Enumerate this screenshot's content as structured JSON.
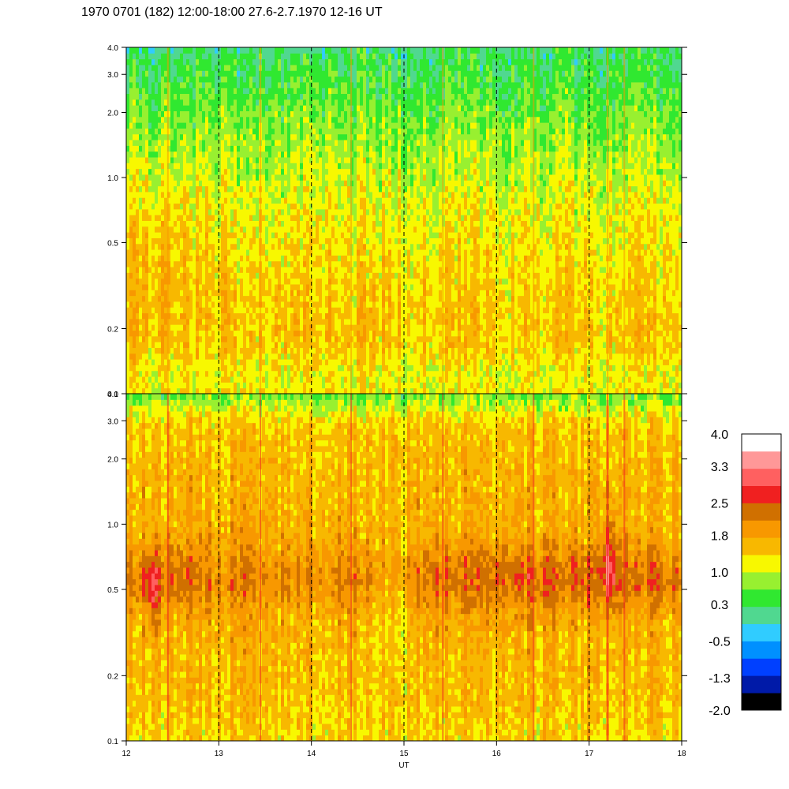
{
  "chart_data": {
    "type": "heatmap",
    "title": "1970 0701 (182) 12:00-18:00 27.6-2.7.1970  12-16 UT",
    "xlabel": "UT",
    "xlim": [
      12,
      18
    ],
    "x_ticks": [
      "12",
      "13",
      "14",
      "15",
      "16",
      "17",
      "18"
    ],
    "panels": [
      {
        "y_scale": "log",
        "ylim": [
          0.1,
          4.0
        ],
        "y_ticks": [
          {
            "value": 4.0,
            "label": "4.0"
          },
          {
            "value": 3.0,
            "label": "3.0"
          },
          {
            "value": 2.0,
            "label": "2.0"
          },
          {
            "value": 1.0,
            "label": "1.0"
          },
          {
            "value": 0.5,
            "label": "0.5"
          },
          {
            "value": 0.2,
            "label": "0.2"
          },
          {
            "value": 0.1,
            "label": "0.1"
          }
        ]
      },
      {
        "y_scale": "log",
        "ylim": [
          0.1,
          4.0
        ],
        "y_ticks": [
          {
            "value": 4.0,
            "label": "4.0"
          },
          {
            "value": 3.0,
            "label": "3.0"
          },
          {
            "value": 2.0,
            "label": "2.0"
          },
          {
            "value": 1.0,
            "label": "1.0"
          },
          {
            "value": 0.5,
            "label": "0.5"
          },
          {
            "value": 0.2,
            "label": "0.2"
          },
          {
            "value": 0.1,
            "label": "0.1"
          }
        ]
      }
    ],
    "vertical_dashed_lines_at": [
      13,
      14,
      15,
      16,
      17
    ],
    "colorbar": {
      "range": [
        -2.0,
        4.0
      ],
      "colors": [
        "#000000",
        "#001aa8",
        "#0040ff",
        "#0090ff",
        "#30ccff",
        "#50d890",
        "#30e830",
        "#98f030",
        "#f8f800",
        "#f8b800",
        "#f89800",
        "#d07000",
        "#f02020",
        "#ff6060",
        "#ff9898",
        "#ffffff"
      ],
      "tick_labels": [
        {
          "value": 4.0,
          "label": "4.0"
        },
        {
          "value": 3.3,
          "label": "3.3"
        },
        {
          "value": 2.5,
          "label": "2.5"
        },
        {
          "value": 1.8,
          "label": "1.8"
        },
        {
          "value": 1.0,
          "label": "1.0"
        },
        {
          "value": 0.3,
          "label": "0.3"
        },
        {
          "value": -0.5,
          "label": "-0.5"
        },
        {
          "value": -1.3,
          "label": "-1.3"
        },
        {
          "value": -2.0,
          "label": "-2.0"
        }
      ]
    }
  }
}
